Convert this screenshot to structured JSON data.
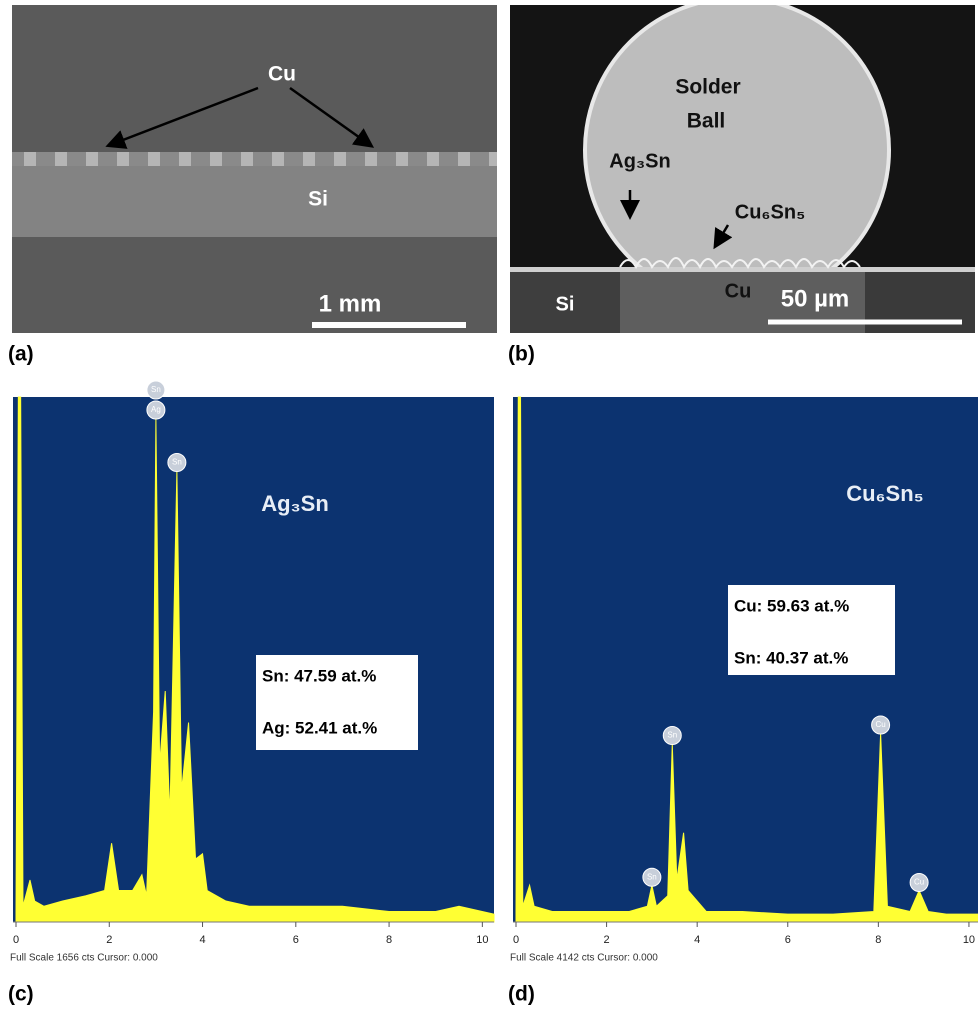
{
  "figure": {
    "panel_a": {
      "label": "(a)",
      "cu": "Cu",
      "si": "Si",
      "scale": "1 mm"
    },
    "panel_b": {
      "label": "(b)",
      "solder": "Solder",
      "ball": "Ball",
      "ag3sn": "Ag₃Sn",
      "cu6sn5": "Cu₆Sn₅",
      "cu": "Cu",
      "si": "Si",
      "scale": "50 µm"
    }
  },
  "chart_data": [
    {
      "type": "area",
      "title": "Ag₃Sn",
      "label": "(c)",
      "footer": "Full Scale 1656 cts Cursor: 0.000",
      "annotations": [
        "Sn: 47.59 at.%",
        "Ag: 52.41 at.%"
      ],
      "color": "#ffff33",
      "background": "#0c3370",
      "xlim": [
        0,
        10.25
      ],
      "xticks": [
        0,
        2,
        4,
        6,
        8,
        10
      ],
      "ylim": [
        0,
        100
      ],
      "x": [
        0,
        0.05,
        0.1,
        0.15,
        0.3,
        0.4,
        0.6,
        1.0,
        1.5,
        1.9,
        2.05,
        2.2,
        2.5,
        2.7,
        2.8,
        2.95,
        3.0,
        3.08,
        3.2,
        3.3,
        3.45,
        3.55,
        3.7,
        3.85,
        4.0,
        4.1,
        4.5,
        5,
        6,
        7,
        8,
        9,
        9.5,
        10.25
      ],
      "values": [
        2,
        100,
        100,
        3,
        8,
        4,
        3,
        4,
        5,
        6,
        15,
        6,
        6,
        9,
        5,
        40,
        96,
        30,
        44,
        20,
        86,
        25,
        38,
        12,
        13,
        6,
        4,
        3,
        3,
        3,
        2,
        2,
        3,
        1.5
      ],
      "markers": [
        {
          "label": "Ag",
          "x": 3.0
        },
        {
          "label": "Sn",
          "x": 3.0
        },
        {
          "label": "Sn",
          "x": 3.45
        }
      ]
    },
    {
      "type": "area",
      "title": "Cu₆Sn₅",
      "label": "(d)",
      "footer": "Full Scale 4142 cts Cursor: 0.000",
      "annotations": [
        "Cu: 59.63 at.%",
        "Sn: 40.37 at.%"
      ],
      "color": "#ffff33",
      "background": "#0c3370",
      "xlim": [
        0,
        10.2
      ],
      "xticks": [
        0,
        2,
        4,
        6,
        8,
        10
      ],
      "ylim": [
        0,
        100
      ],
      "x": [
        0,
        0.05,
        0.1,
        0.15,
        0.3,
        0.4,
        0.8,
        1.5,
        2.5,
        2.9,
        3.0,
        3.1,
        3.35,
        3.45,
        3.55,
        3.7,
        3.8,
        4.0,
        4.2,
        5,
        6,
        7,
        7.9,
        8.05,
        8.2,
        8.7,
        8.9,
        9.1,
        9.5,
        10.2
      ],
      "values": [
        2,
        100,
        100,
        3,
        7,
        3,
        2,
        2,
        2,
        3,
        7,
        3,
        5,
        34,
        8,
        17,
        6,
        4,
        2,
        2,
        1.5,
        1.5,
        2,
        36,
        3,
        2,
        6,
        2,
        1.5,
        1.5
      ],
      "markers": [
        {
          "label": "Sn",
          "x": 3.0
        },
        {
          "label": "Sn",
          "x": 3.45
        },
        {
          "label": "Cu",
          "x": 8.05
        },
        {
          "label": "Cu",
          "x": 8.9
        }
      ]
    }
  ]
}
